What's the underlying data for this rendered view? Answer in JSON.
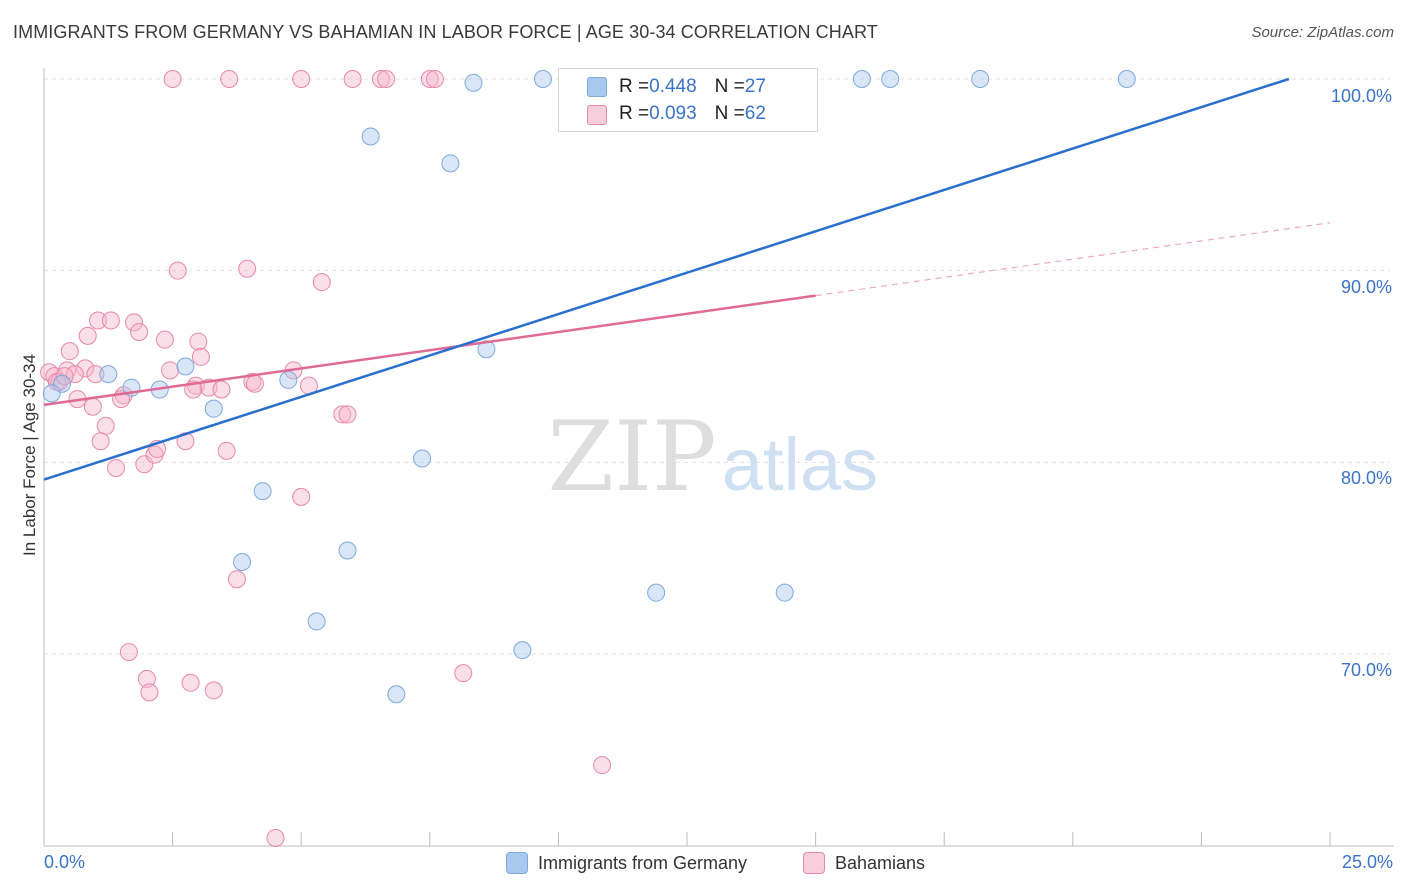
{
  "title": "IMMIGRANTS FROM GERMANY VS BAHAMIAN IN LABOR FORCE | AGE 30-34 CORRELATION CHART",
  "source": "Source: ZipAtlas.com",
  "watermark": {
    "zip": "ZIP",
    "atlas": "atlas"
  },
  "stats": [
    {
      "r_label": "R = ",
      "r": "0.448",
      "n_label": "N = ",
      "n": "27",
      "color": "#a9c8f0"
    },
    {
      "r_label": "R = ",
      "r": "0.093",
      "n_label": "N = ",
      "n": "62",
      "color": "#f7b8cc"
    }
  ],
  "legend": [
    {
      "label": "Immigrants from Germany",
      "color": "#a9c8f0"
    },
    {
      "label": "Bahamians",
      "color": "#f7b8cc"
    }
  ],
  "chart_data": {
    "type": "scatter",
    "title": "IMMIGRANTS FROM GERMANY VS BAHAMIAN IN LABOR FORCE | AGE 30-34 CORRELATION CHART",
    "xlabel": "",
    "ylabel": "In Labor Force | Age 30-34",
    "xlim": [
      0,
      25
    ],
    "ylim": [
      60,
      100
    ],
    "x_tick_labels": [
      "0.0%",
      "25.0%"
    ],
    "y_ticks": [
      70,
      80,
      90,
      100
    ],
    "y_tick_labels": [
      "70.0%",
      "80.0%",
      "90.0%",
      "100.0%"
    ],
    "grid": true,
    "series": [
      {
        "name": "Immigrants from Germany",
        "color": "#a9c8f0",
        "stroke": "#7fa9dc",
        "points": [
          [
            0.35,
            84.1
          ],
          [
            1.25,
            84.6
          ],
          [
            1.7,
            83.9
          ],
          [
            2.25,
            83.8
          ],
          [
            2.75,
            85.0
          ],
          [
            3.3,
            82.8
          ],
          [
            3.85,
            74.8
          ],
          [
            4.25,
            78.5
          ],
          [
            4.75,
            84.3
          ],
          [
            5.3,
            71.7
          ],
          [
            5.9,
            75.4
          ],
          [
            6.35,
            97.0
          ],
          [
            6.85,
            67.9
          ],
          [
            7.35,
            80.2
          ],
          [
            7.9,
            95.6
          ],
          [
            8.35,
            99.8
          ],
          [
            8.6,
            85.9
          ],
          [
            9.3,
            70.2
          ],
          [
            9.7,
            100.0
          ],
          [
            11.2,
            100.0
          ],
          [
            11.9,
            73.2
          ],
          [
            14.4,
            73.2
          ],
          [
            15.9,
            100.0
          ],
          [
            16.45,
            100.0
          ],
          [
            18.2,
            100.0
          ],
          [
            21.05,
            100.0
          ],
          [
            0.15,
            83.6
          ]
        ],
        "trendline": {
          "x": [
            0,
            24.2
          ],
          "y": [
            79.1,
            100.0
          ],
          "color": "#2a6fd0"
        }
      },
      {
        "name": "Bahamians",
        "color": "#f7b8cc",
        "stroke": "#e888a8",
        "points": [
          [
            0.1,
            84.7
          ],
          [
            0.2,
            84.5
          ],
          [
            0.3,
            84.2
          ],
          [
            0.45,
            84.8
          ],
          [
            0.5,
            85.8
          ],
          [
            0.65,
            83.3
          ],
          [
            0.8,
            84.9
          ],
          [
            0.85,
            86.6
          ],
          [
            0.95,
            82.9
          ],
          [
            0.6,
            84.6
          ],
          [
            1.2,
            81.9
          ],
          [
            1.05,
            87.4
          ],
          [
            1.3,
            87.4
          ],
          [
            1.4,
            79.7
          ],
          [
            1.55,
            83.5
          ],
          [
            1.5,
            83.3
          ],
          [
            1.75,
            87.3
          ],
          [
            1.85,
            86.8
          ],
          [
            1.95,
            79.9
          ],
          [
            2.0,
            68.7
          ],
          [
            2.05,
            68.0
          ],
          [
            2.15,
            80.4
          ],
          [
            2.2,
            80.7
          ],
          [
            2.35,
            86.4
          ],
          [
            2.45,
            84.8
          ],
          [
            2.6,
            90.0
          ],
          [
            2.75,
            81.1
          ],
          [
            2.85,
            68.5
          ],
          [
            2.95,
            84.0
          ],
          [
            3.0,
            86.3
          ],
          [
            3.05,
            85.5
          ],
          [
            3.2,
            83.9
          ],
          [
            3.3,
            68.1
          ],
          [
            3.45,
            83.8
          ],
          [
            3.55,
            80.6
          ],
          [
            3.75,
            73.9
          ],
          [
            3.95,
            90.1
          ],
          [
            4.05,
            84.2
          ],
          [
            4.1,
            84.1
          ],
          [
            4.5,
            60.4
          ],
          [
            4.85,
            84.8
          ],
          [
            5.0,
            78.2
          ],
          [
            5.15,
            84.0
          ],
          [
            5.4,
            89.4
          ],
          [
            5.8,
            82.5
          ],
          [
            5.9,
            82.5
          ],
          [
            1.1,
            81.1
          ],
          [
            2.5,
            100.0
          ],
          [
            3.6,
            100.0
          ],
          [
            5.0,
            100.0
          ],
          [
            6.0,
            100.0
          ],
          [
            6.55,
            100.0
          ],
          [
            6.65,
            100.0
          ],
          [
            7.5,
            100.0
          ],
          [
            7.6,
            100.0
          ],
          [
            8.15,
            69.0
          ],
          [
            10.85,
            64.2
          ],
          [
            1.65,
            70.1
          ],
          [
            0.25,
            84.2
          ],
          [
            1.0,
            84.6
          ],
          [
            2.9,
            83.8
          ],
          [
            0.4,
            84.5
          ]
        ],
        "trendline": {
          "x": [
            0,
            15.0
          ],
          "y": [
            83.0,
            88.7
          ],
          "color": "#e06a96"
        },
        "trendline_dashed": {
          "x": [
            15.0,
            25.0
          ],
          "y": [
            88.7,
            92.5
          ]
        }
      }
    ]
  }
}
